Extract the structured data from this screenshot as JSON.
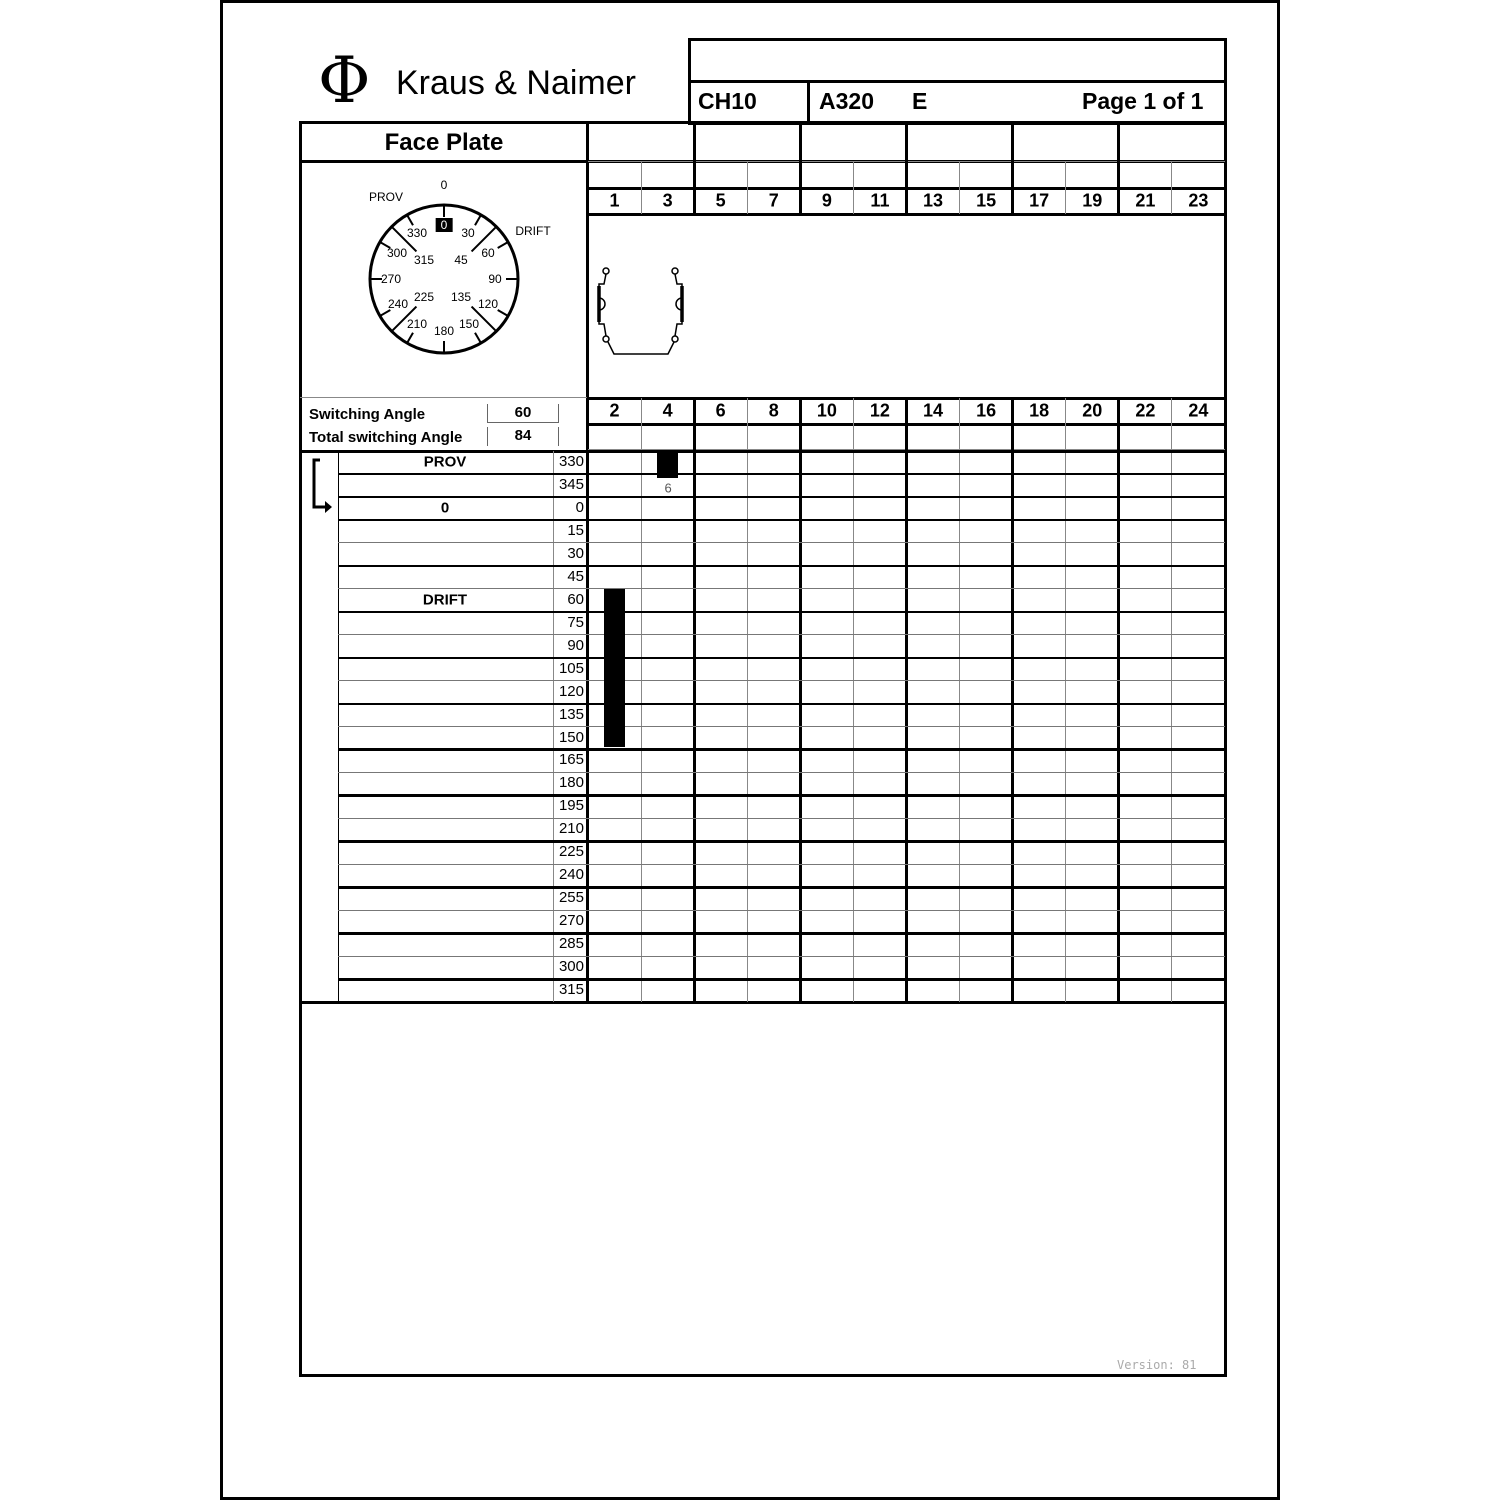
{
  "header": {
    "brand": "Kraus & Naimer",
    "code1": "CH10",
    "code2": "A320",
    "code3": "E",
    "page": "Page 1 of 1",
    "logo_symbol": "Φ"
  },
  "faceplate": {
    "title": "Face Plate",
    "top_label": "0",
    "left_label": "PROV",
    "right_label": "DRIFT",
    "selected": "0",
    "dial_labels": {
      "a30": "30",
      "a60": "60",
      "a90": "90",
      "a120": "120",
      "a150": "150",
      "a180": "180",
      "a210": "210",
      "a240": "240",
      "a270": "270",
      "a300": "300",
      "a330": "330",
      "a45": "45",
      "a135": "135",
      "a225": "225",
      "a315": "315"
    }
  },
  "angles": {
    "switching_label": "Switching Angle",
    "switching_value": "60",
    "total_label": "Total switching Angle",
    "total_value": "84"
  },
  "contacts_top": [
    "1",
    "3",
    "5",
    "7",
    "9",
    "11",
    "13",
    "15",
    "17",
    "19",
    "21",
    "23"
  ],
  "contacts_bottom": [
    "2",
    "4",
    "6",
    "8",
    "10",
    "12",
    "14",
    "16",
    "18",
    "20",
    "22",
    "24"
  ],
  "rows": [
    {
      "angle": "330",
      "label": "PROV"
    },
    {
      "angle": "345",
      "label": ""
    },
    {
      "angle": "0",
      "label": "0"
    },
    {
      "angle": "15",
      "label": ""
    },
    {
      "angle": "30",
      "label": ""
    },
    {
      "angle": "45",
      "label": ""
    },
    {
      "angle": "60",
      "label": "DRIFT"
    },
    {
      "angle": "75",
      "label": ""
    },
    {
      "angle": "90",
      "label": ""
    },
    {
      "angle": "105",
      "label": ""
    },
    {
      "angle": "120",
      "label": ""
    },
    {
      "angle": "135",
      "label": ""
    },
    {
      "angle": "150",
      "label": ""
    },
    {
      "angle": "165",
      "label": ""
    },
    {
      "angle": "180",
      "label": ""
    },
    {
      "angle": "195",
      "label": ""
    },
    {
      "angle": "210",
      "label": ""
    },
    {
      "angle": "225",
      "label": ""
    },
    {
      "angle": "240",
      "label": ""
    },
    {
      "angle": "255",
      "label": ""
    },
    {
      "angle": "270",
      "label": ""
    },
    {
      "angle": "285",
      "label": ""
    },
    {
      "angle": "300",
      "label": ""
    },
    {
      "angle": "315",
      "label": ""
    }
  ],
  "closed_contacts": [
    {
      "column": "1",
      "from_angle": "60",
      "to_angle": "150"
    },
    {
      "column": "3",
      "from_angle": "330",
      "to_angle": "330",
      "note": "6"
    }
  ],
  "version": "Version: 81"
}
